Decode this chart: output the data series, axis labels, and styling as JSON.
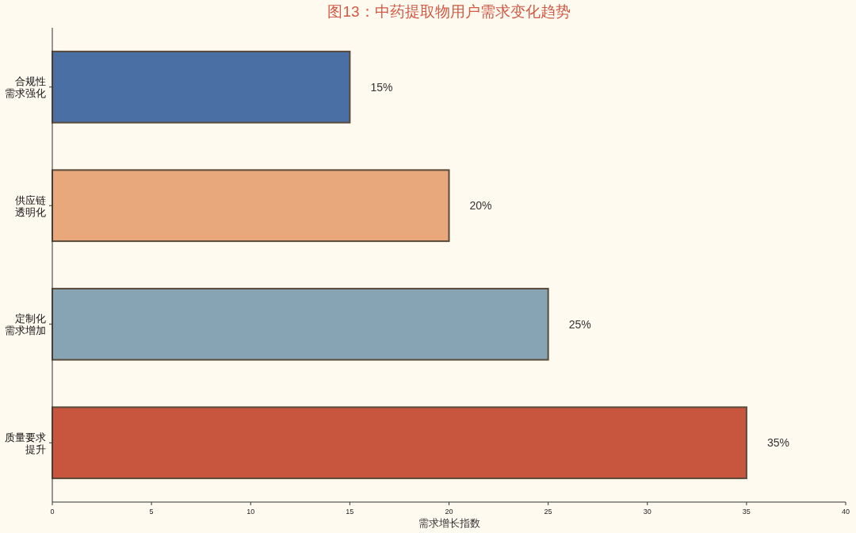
{
  "chart_data": {
    "type": "bar",
    "orientation": "horizontal",
    "title": "图13：中药提取物用户需求变化趋势",
    "xlabel": "需求增长指数",
    "categories": [
      "合规性需求强化",
      "供应链透明化",
      "定制化需求增加",
      "质量要求提升"
    ],
    "values": [
      15,
      20,
      25,
      35
    ],
    "colors": [
      "#4a6fa5",
      "#e8a87c",
      "#87a4b5",
      "#c8553d"
    ],
    "value_labels": [
      "15%",
      "20%",
      "25%",
      "35%"
    ],
    "xlim": [
      0,
      40
    ],
    "xticks": [
      0,
      5,
      10,
      15,
      20,
      25,
      30,
      35,
      40
    ]
  }
}
